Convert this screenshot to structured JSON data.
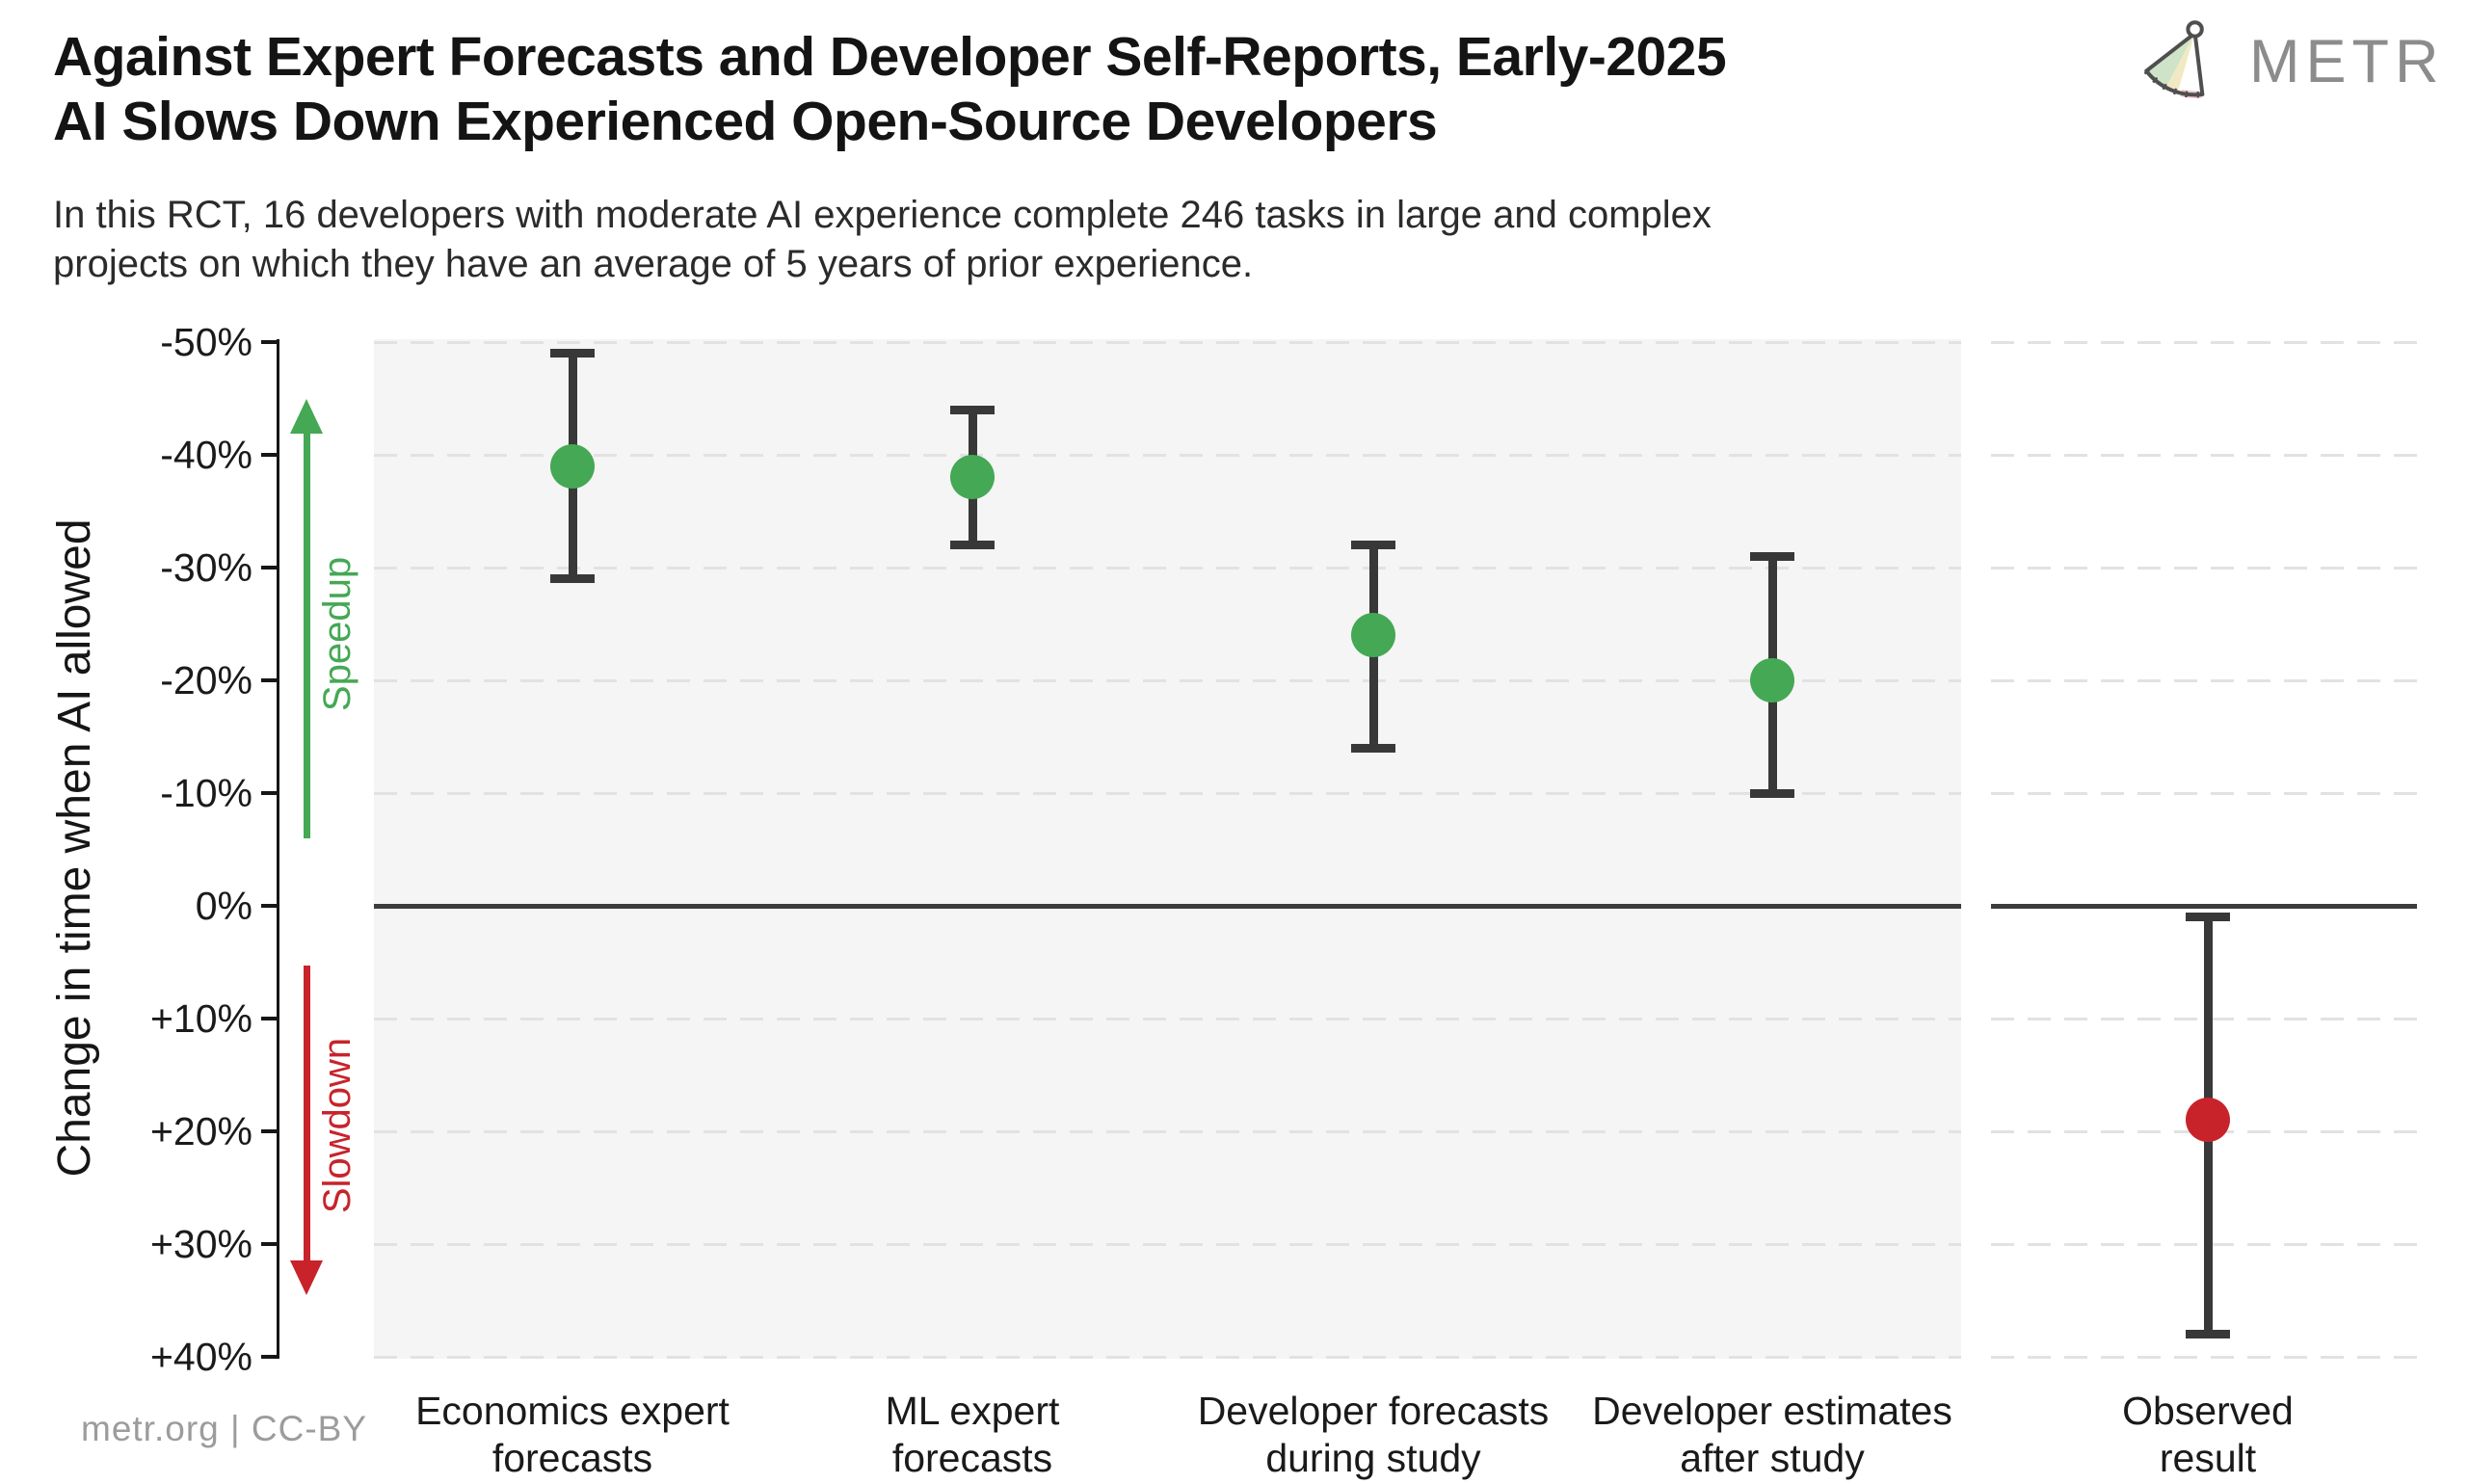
{
  "header": {
    "title_line1": "Against Expert Forecasts and Developer Self-Reports, Early-2025",
    "title_line2": "AI Slows Down Experienced Open-Source Developers",
    "subtitle_line1": "In this RCT, 16 developers with moderate AI experience complete 246 tasks in large and complex",
    "subtitle_line2": "projects on which they have an average of 5 years of prior experience.",
    "logo_text": "METR"
  },
  "footer": {
    "credit": "metr.org  |  CC-BY"
  },
  "colors": {
    "green": "#44a854",
    "red": "#c8232b",
    "error_bar": "#383838",
    "panel_bg": "#f5f5f5",
    "gridline": "#e2e2e2",
    "zero_line": "#3c3c3c",
    "tick_text": "#1a1a1a"
  },
  "chart_data": {
    "type": "scatter",
    "title": "Against Expert Forecasts and Developer Self-Reports, Early-2025 AI Slows Down Experienced Open-Source Developers",
    "subtitle": "In this RCT, 16 developers with moderate AI experience complete 246 tasks in large and complex projects on which they have an average of 5 years of prior experience.",
    "ylabel": "Change in time when AI allowed",
    "unit": "%",
    "grid": true,
    "yaxis": {
      "min": -50,
      "max": 40,
      "inverted_negative_up": true,
      "tick_values": [
        -50,
        -40,
        -30,
        -20,
        -10,
        0,
        10,
        20,
        30,
        40
      ],
      "tick_labels": [
        "-50%",
        "-40%",
        "-30%",
        "-20%",
        "-10%",
        "0%",
        "+10%",
        "+20%",
        "+30%",
        "+40%"
      ]
    },
    "zero_line_value": 0,
    "annotations": {
      "speedup": {
        "label": "Speedup",
        "direction": "up"
      },
      "slowdown": {
        "label": "Slowdown",
        "direction": "down"
      }
    },
    "points": [
      {
        "category": "Economics expert forecasts",
        "category_lines": [
          "Economics expert",
          "forecasts"
        ],
        "mean_pct": -39,
        "ci": [
          -49,
          -29
        ],
        "color": "#44a854",
        "panel": "main"
      },
      {
        "category": "ML expert forecasts",
        "category_lines": [
          "ML expert",
          "forecasts"
        ],
        "mean_pct": -38,
        "ci": [
          -44,
          -32
        ],
        "color": "#44a854",
        "panel": "main"
      },
      {
        "category": "Developer forecasts during study",
        "category_lines": [
          "Developer forecasts",
          "during study"
        ],
        "mean_pct": -24,
        "ci": [
          -32,
          -14
        ],
        "color": "#44a854",
        "panel": "main"
      },
      {
        "category": "Developer estimates after study",
        "category_lines": [
          "Developer estimates",
          "after study"
        ],
        "mean_pct": -20,
        "ci": [
          -31,
          -10
        ],
        "color": "#44a854",
        "panel": "main"
      },
      {
        "category": "Observed result",
        "category_lines": [
          "Observed",
          "result"
        ],
        "mean_pct": 19,
        "ci": [
          1,
          38
        ],
        "color": "#c8232b",
        "panel": "right"
      }
    ]
  }
}
